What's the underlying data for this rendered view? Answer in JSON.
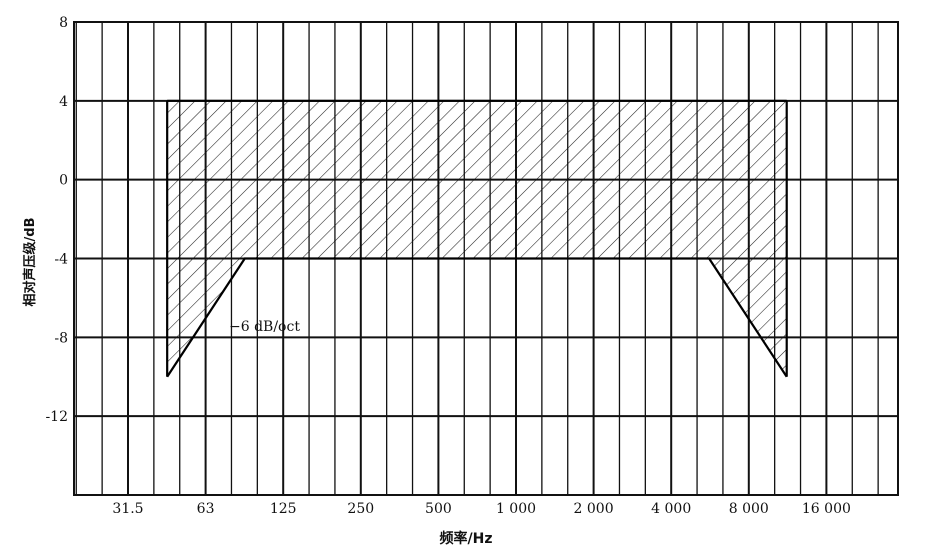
{
  "chart_data": {
    "type": "area",
    "xlabel": "频率/Hz",
    "ylabel": "相对声压级/dB",
    "x_scale": "log (octave bands)",
    "ylim": [
      -16,
      8
    ],
    "y_ticks": [
      8,
      4,
      0,
      -4,
      -8,
      -12
    ],
    "x_tick_labels": [
      "31.5",
      "63",
      "125",
      "250",
      "500",
      "1 000",
      "2 000",
      "4 000",
      "8 000",
      "16 000"
    ],
    "grid": true,
    "fill": "hatched",
    "tolerance_band": {
      "upper": [
        {
          "x": 44.7,
          "y": 4
        },
        {
          "x": 11314,
          "y": 4
        }
      ],
      "lower": [
        {
          "x": 44.7,
          "y": -10
        },
        {
          "x": 89.4,
          "y": -4
        },
        {
          "x": 5657,
          "y": -4
        },
        {
          "x": 11314,
          "y": -10
        }
      ]
    },
    "annotations": [
      {
        "text": "−6 dB/oct",
        "x": 89.4,
        "y": -7.5
      }
    ]
  }
}
